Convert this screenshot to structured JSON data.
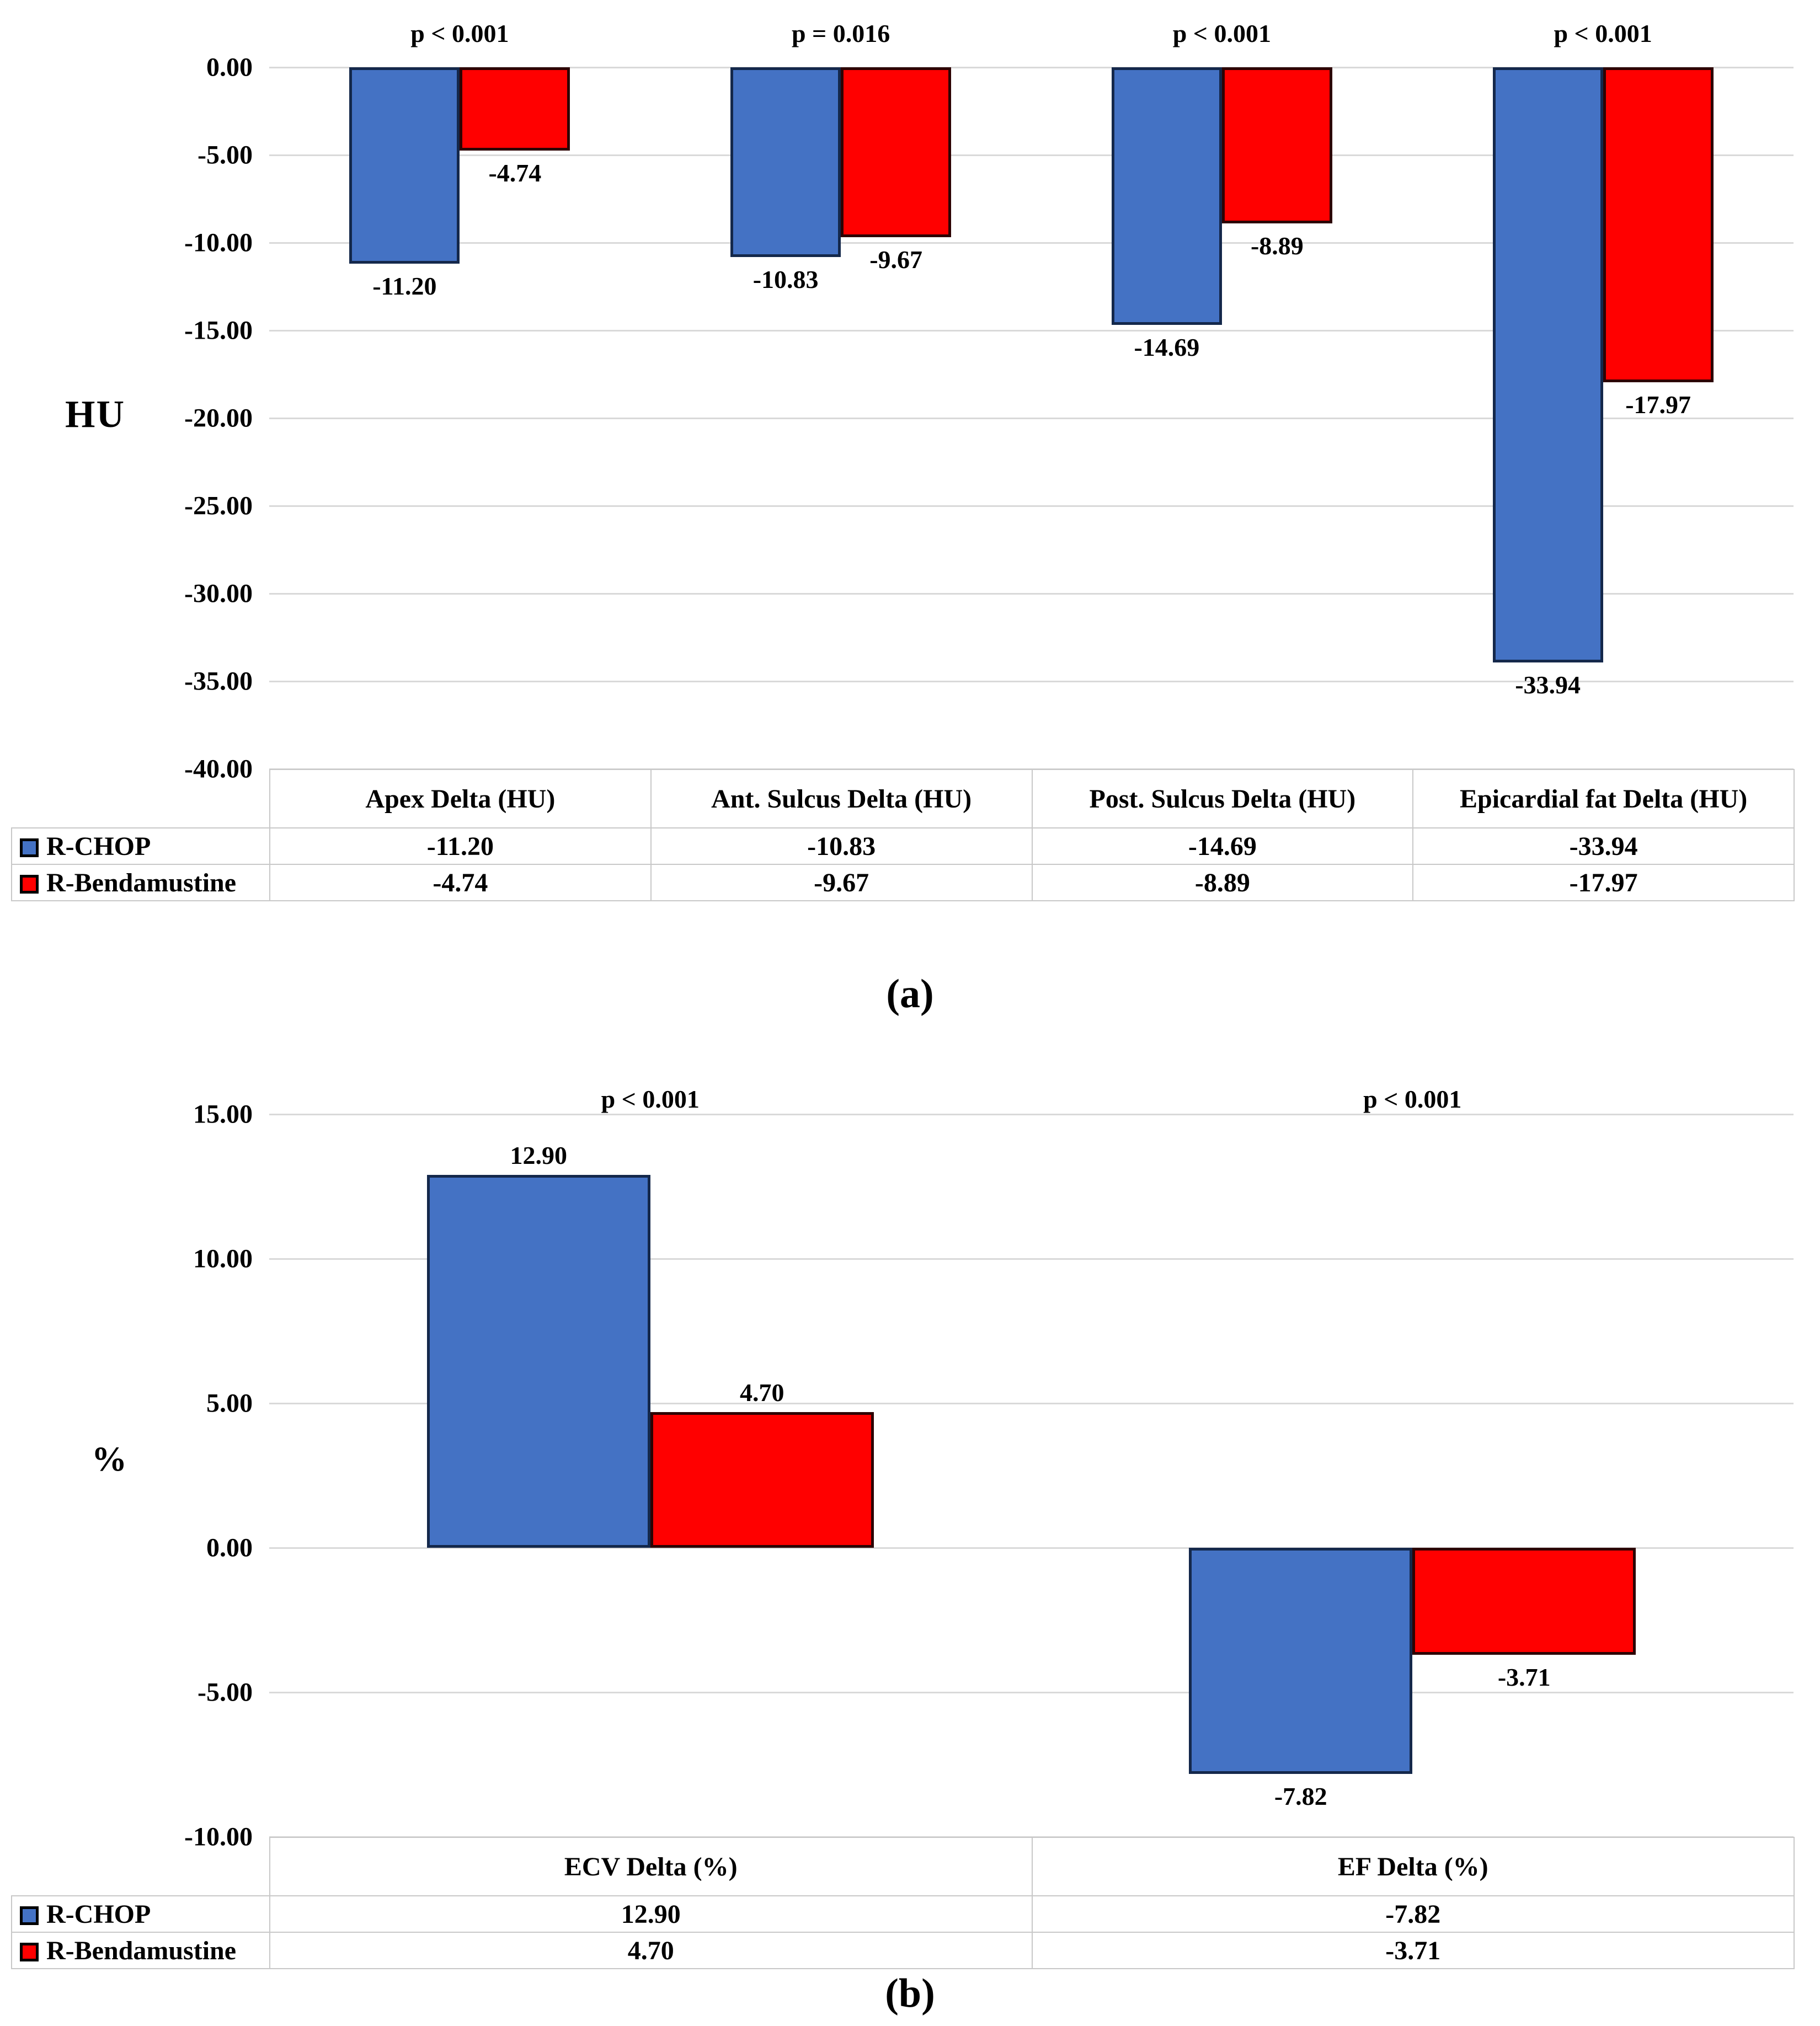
{
  "chart_data": [
    {
      "id": "a",
      "type": "bar",
      "panel_label": "(a)",
      "ylabel": "HU",
      "ylim": [
        0,
        -40
      ],
      "ytick_step": -5,
      "yticks": [
        0,
        -5,
        -10,
        -15,
        -20,
        -25,
        -30,
        -35,
        -40
      ],
      "ytick_labels": [
        "0.00",
        "-5.00",
        "-10.00",
        "-15.00",
        "-20.00",
        "-25.00",
        "-30.00",
        "-35.00",
        "-40.00"
      ],
      "grid": true,
      "legend_position": "table-left",
      "categories": [
        "Apex Delta (HU)",
        "Ant. Sulcus Delta (HU)",
        "Post. Sulcus Delta (HU)",
        "Epicardial fat Delta (HU)"
      ],
      "p_values": [
        "p < 0.001",
        "p = 0.016",
        "p < 0.001",
        "p < 0.001"
      ],
      "series": [
        {
          "name": "R-CHOP",
          "color": "#4472C4",
          "border_color": "#14284b",
          "values": [
            -11.2,
            -10.83,
            -14.69,
            -33.94
          ]
        },
        {
          "name": "R-Bendamustine",
          "color": "#FF0000",
          "border_color": "#2d0303",
          "values": [
            -4.74,
            -9.67,
            -8.89,
            -17.97
          ]
        }
      ]
    },
    {
      "id": "b",
      "type": "bar",
      "panel_label": "(b)",
      "ylabel": "%",
      "ylim": [
        15,
        -10
      ],
      "ytick_step": -5,
      "yticks": [
        15,
        10,
        5,
        0,
        -5,
        -10
      ],
      "ytick_labels": [
        "15.00",
        "10.00",
        "5.00",
        "0.00",
        "-5.00",
        "-10.00"
      ],
      "grid": true,
      "legend_position": "table-left",
      "categories": [
        "ECV Delta (%)",
        "EF Delta (%)"
      ],
      "p_values": [
        "p < 0.001",
        "p < 0.001"
      ],
      "series": [
        {
          "name": "R-CHOP",
          "color": "#4472C4",
          "border_color": "#14284b",
          "values": [
            12.9,
            -7.82
          ]
        },
        {
          "name": "R-Bendamustine",
          "color": "#FF0000",
          "border_color": "#2d0303",
          "values": [
            4.7,
            -3.71
          ]
        }
      ]
    }
  ],
  "colors": {
    "r_chop": "#4472C4",
    "r_bendamustine": "#FF0000",
    "gridline": "#d9d9d9",
    "table_border": "#c8c8c8"
  }
}
